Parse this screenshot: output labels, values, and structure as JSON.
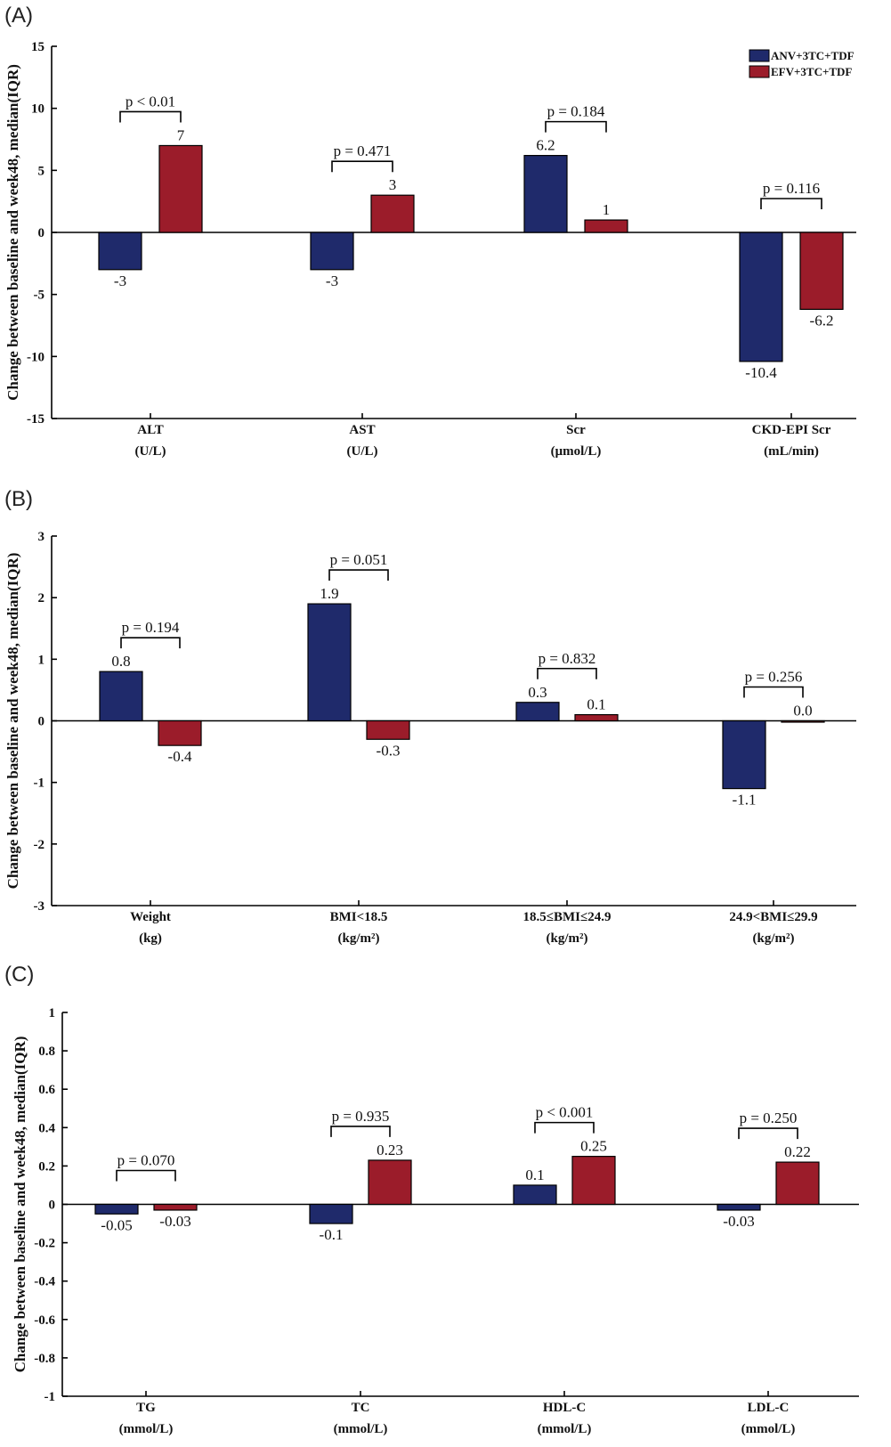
{
  "legend": [
    {
      "name": "ANV+3TC+TDF",
      "color": "#1f2a6b"
    },
    {
      "name": "EFV+3TC+TDF",
      "color": "#9b1c2a"
    }
  ],
  "chart_data": [
    {
      "type": "bar",
      "panel": "(A)",
      "ylabel": "Change between baseline and week48, median(IQR)",
      "ylim": [
        -15,
        15
      ],
      "yticks": [
        "15",
        "10",
        "5",
        "0",
        "-5",
        "-10",
        "-15"
      ],
      "ytick_values": [
        15,
        10,
        5,
        0,
        -5,
        -10,
        -15
      ],
      "categories": [
        {
          "name": "ALT",
          "unit": "(U/L)"
        },
        {
          "name": "AST",
          "unit": "(U/L)"
        },
        {
          "name": "Scr",
          "unit": "(μmol/L)"
        },
        {
          "name": "CKD-EPI Scr",
          "unit": "(mL/min)"
        }
      ],
      "series": [
        {
          "name": "ANV+3TC+TDF",
          "values": [
            -3,
            -3,
            6.2,
            -10.4
          ],
          "labels": [
            "-3",
            "-3",
            "6.2",
            "-10.4"
          ]
        },
        {
          "name": "EFV+3TC+TDF",
          "values": [
            7,
            3,
            1,
            -6.2
          ],
          "labels": [
            "7",
            "3",
            "1",
            "-6.2"
          ]
        }
      ],
      "pvalues": [
        "p < 0.01",
        "p = 0.471",
        "p = 0.184",
        "p = 0.116"
      ],
      "legend_position": "top-right"
    },
    {
      "type": "bar",
      "panel": "(B)",
      "ylabel": "Change between baseline and week48, median(IQR)",
      "ylim": [
        -3,
        3
      ],
      "yticks": [
        "3",
        "2",
        "1",
        "0",
        "-1",
        "-2",
        "-3"
      ],
      "ytick_values": [
        3,
        2,
        1,
        0,
        -1,
        -2,
        -3
      ],
      "categories": [
        {
          "name": "Weight",
          "unit": "(kg)"
        },
        {
          "name": "BMI<18.5",
          "unit": "(kg/m²)"
        },
        {
          "name": "18.5≤BMI≤24.9",
          "unit": "(kg/m²)"
        },
        {
          "name": "24.9<BMI≤29.9",
          "unit": "(kg/m²)"
        }
      ],
      "series": [
        {
          "name": "ANV+3TC+TDF",
          "values": [
            0.8,
            1.9,
            0.3,
            -1.1
          ],
          "labels": [
            "0.8",
            "1.9",
            "0.3",
            "-1.1"
          ]
        },
        {
          "name": "EFV+3TC+TDF",
          "values": [
            -0.4,
            -0.3,
            0.1,
            0.0
          ],
          "labels": [
            "-0.4",
            "-0.3",
            "0.1",
            "0.0"
          ]
        }
      ],
      "pvalues": [
        "p = 0.194",
        "p = 0.051",
        "p = 0.832",
        "p = 0.256"
      ]
    },
    {
      "type": "bar",
      "panel": "(C)",
      "ylabel": "Change between baseline and week48, median(IQR)",
      "ylim": [
        -1,
        1
      ],
      "yticks": [
        "1",
        "0.8",
        "0.6",
        "0.4",
        "0.2",
        "0",
        "-0.2",
        "-0.4",
        "-0.6",
        "-0.8",
        "-1"
      ],
      "ytick_values": [
        1,
        0.8,
        0.6,
        0.4,
        0.2,
        0,
        -0.2,
        -0.4,
        -0.6,
        -0.8,
        -1
      ],
      "categories": [
        {
          "name": "TG",
          "unit": "(mmol/L)"
        },
        {
          "name": "TC",
          "unit": "(mmol/L)"
        },
        {
          "name": "HDL-C",
          "unit": "(mmol/L)"
        },
        {
          "name": "LDL-C",
          "unit": "(mmol/L)"
        }
      ],
      "series": [
        {
          "name": "ANV+3TC+TDF",
          "values": [
            -0.05,
            -0.1,
            0.1,
            -0.03
          ],
          "labels": [
            "-0.05",
            "-0.1",
            "0.1",
            "-0.03"
          ]
        },
        {
          "name": "EFV+3TC+TDF",
          "values": [
            -0.03,
            0.23,
            0.25,
            0.22
          ],
          "labels": [
            "-0.03",
            "0.23",
            "0.25",
            "0.22"
          ]
        }
      ],
      "pvalues": [
        "p = 0.070",
        "p = 0.935",
        "p < 0.001",
        "p = 0.250"
      ]
    }
  ]
}
